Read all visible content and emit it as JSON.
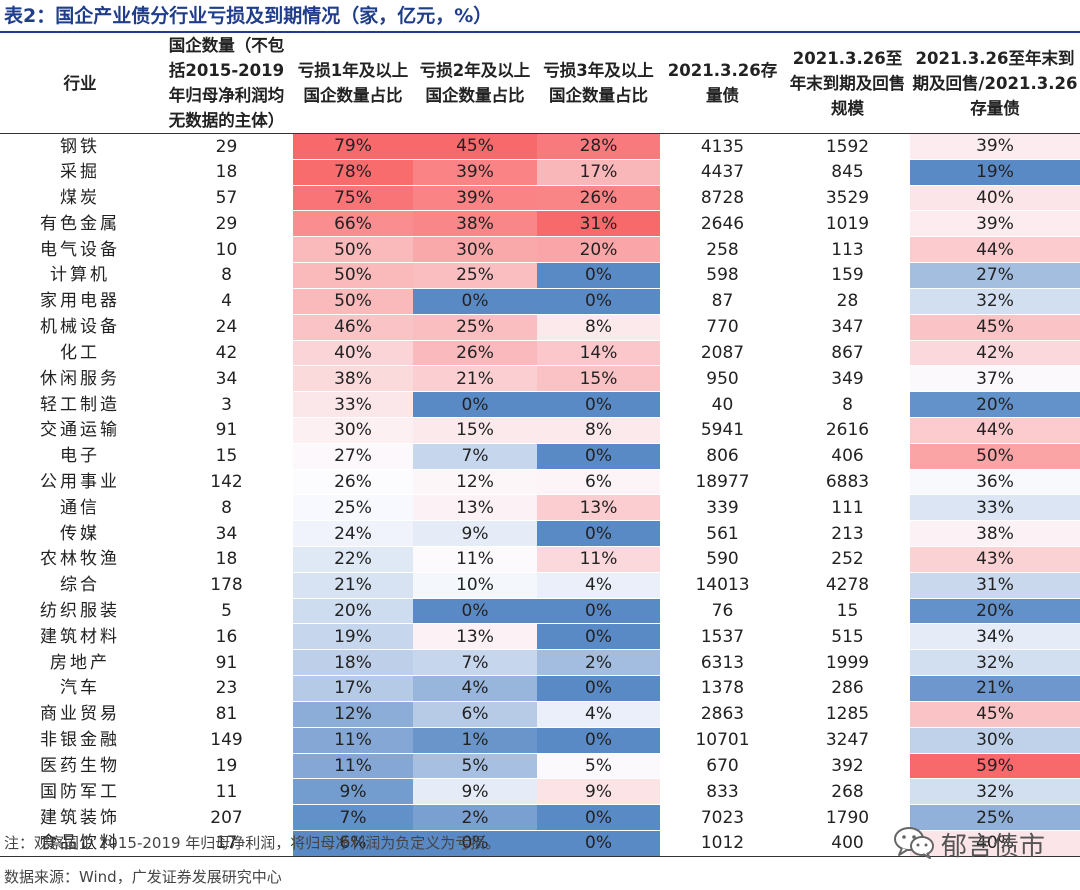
{
  "title": "表2：国企产业债分行业亏损及到期情况（家，亿元，%）",
  "table": {
    "headers": [
      "行业",
      "国企数量（不包括2015-2019年归母净利润均无数据的主体）",
      "亏损1年及以上国企数量占比",
      "亏损2年及以上国企数量占比",
      "亏损3年及以上国企数量占比",
      "2021.3.26存量债",
      "2021.3.26至年末到期及回售规模",
      "2021.3.26至年末到期及回售/2021.3.26存量债"
    ],
    "rows": [
      {
        "industry": "钢铁",
        "count": "29",
        "loss1": "79%",
        "loss2": "45%",
        "loss3": "28%",
        "stock": "4135",
        "due": "1592",
        "ratio": "39%"
      },
      {
        "industry": "采掘",
        "count": "18",
        "loss1": "78%",
        "loss2": "39%",
        "loss3": "17%",
        "stock": "4437",
        "due": "845",
        "ratio": "19%"
      },
      {
        "industry": "煤炭",
        "count": "57",
        "loss1": "75%",
        "loss2": "39%",
        "loss3": "26%",
        "stock": "8728",
        "due": "3529",
        "ratio": "40%"
      },
      {
        "industry": "有色金属",
        "count": "29",
        "loss1": "66%",
        "loss2": "38%",
        "loss3": "31%",
        "stock": "2646",
        "due": "1019",
        "ratio": "39%"
      },
      {
        "industry": "电气设备",
        "count": "10",
        "loss1": "50%",
        "loss2": "30%",
        "loss3": "20%",
        "stock": "258",
        "due": "113",
        "ratio": "44%"
      },
      {
        "industry": "计算机",
        "count": "8",
        "loss1": "50%",
        "loss2": "25%",
        "loss3": "0%",
        "stock": "598",
        "due": "159",
        "ratio": "27%"
      },
      {
        "industry": "家用电器",
        "count": "4",
        "loss1": "50%",
        "loss2": "0%",
        "loss3": "0%",
        "stock": "87",
        "due": "28",
        "ratio": "32%"
      },
      {
        "industry": "机械设备",
        "count": "24",
        "loss1": "46%",
        "loss2": "25%",
        "loss3": "8%",
        "stock": "770",
        "due": "347",
        "ratio": "45%"
      },
      {
        "industry": "化工",
        "count": "42",
        "loss1": "40%",
        "loss2": "26%",
        "loss3": "14%",
        "stock": "2087",
        "due": "867",
        "ratio": "42%"
      },
      {
        "industry": "休闲服务",
        "count": "34",
        "loss1": "38%",
        "loss2": "21%",
        "loss3": "15%",
        "stock": "950",
        "due": "349",
        "ratio": "37%"
      },
      {
        "industry": "轻工制造",
        "count": "3",
        "loss1": "33%",
        "loss2": "0%",
        "loss3": "0%",
        "stock": "40",
        "due": "8",
        "ratio": "20%"
      },
      {
        "industry": "交通运输",
        "count": "91",
        "loss1": "30%",
        "loss2": "15%",
        "loss3": "8%",
        "stock": "5941",
        "due": "2616",
        "ratio": "44%"
      },
      {
        "industry": "电子",
        "count": "15",
        "loss1": "27%",
        "loss2": "7%",
        "loss3": "0%",
        "stock": "806",
        "due": "406",
        "ratio": "50%"
      },
      {
        "industry": "公用事业",
        "count": "142",
        "loss1": "26%",
        "loss2": "12%",
        "loss3": "6%",
        "stock": "18977",
        "due": "6883",
        "ratio": "36%"
      },
      {
        "industry": "通信",
        "count": "8",
        "loss1": "25%",
        "loss2": "13%",
        "loss3": "13%",
        "stock": "339",
        "due": "111",
        "ratio": "33%"
      },
      {
        "industry": "传媒",
        "count": "34",
        "loss1": "24%",
        "loss2": "9%",
        "loss3": "0%",
        "stock": "561",
        "due": "213",
        "ratio": "38%"
      },
      {
        "industry": "农林牧渔",
        "count": "18",
        "loss1": "22%",
        "loss2": "11%",
        "loss3": "11%",
        "stock": "590",
        "due": "252",
        "ratio": "43%"
      },
      {
        "industry": "综合",
        "count": "178",
        "loss1": "21%",
        "loss2": "10%",
        "loss3": "4%",
        "stock": "14013",
        "due": "4278",
        "ratio": "31%"
      },
      {
        "industry": "纺织服装",
        "count": "5",
        "loss1": "20%",
        "loss2": "0%",
        "loss3": "0%",
        "stock": "76",
        "due": "15",
        "ratio": "20%"
      },
      {
        "industry": "建筑材料",
        "count": "16",
        "loss1": "19%",
        "loss2": "13%",
        "loss3": "0%",
        "stock": "1537",
        "due": "515",
        "ratio": "34%"
      },
      {
        "industry": "房地产",
        "count": "91",
        "loss1": "18%",
        "loss2": "7%",
        "loss3": "2%",
        "stock": "6313",
        "due": "1999",
        "ratio": "32%"
      },
      {
        "industry": "汽车",
        "count": "23",
        "loss1": "17%",
        "loss2": "4%",
        "loss3": "0%",
        "stock": "1378",
        "due": "286",
        "ratio": "21%"
      },
      {
        "industry": "商业贸易",
        "count": "81",
        "loss1": "12%",
        "loss2": "6%",
        "loss3": "4%",
        "stock": "2863",
        "due": "1285",
        "ratio": "45%"
      },
      {
        "industry": "非银金融",
        "count": "149",
        "loss1": "11%",
        "loss2": "1%",
        "loss3": "0%",
        "stock": "10701",
        "due": "3247",
        "ratio": "30%"
      },
      {
        "industry": "医药生物",
        "count": "19",
        "loss1": "11%",
        "loss2": "5%",
        "loss3": "5%",
        "stock": "670",
        "due": "392",
        "ratio": "59%"
      },
      {
        "industry": "国防军工",
        "count": "11",
        "loss1": "9%",
        "loss2": "9%",
        "loss3": "9%",
        "stock": "833",
        "due": "268",
        "ratio": "32%"
      },
      {
        "industry": "建筑装饰",
        "count": "207",
        "loss1": "7%",
        "loss2": "2%",
        "loss3": "0%",
        "stock": "7023",
        "due": "1790",
        "ratio": "25%"
      },
      {
        "industry": "食品饮料",
        "count": "17",
        "loss1": "6%",
        "loss2": "0%",
        "loss3": "0%",
        "stock": "1012",
        "due": "400",
        "ratio": "40%"
      }
    ]
  },
  "note": "注：观察国企 2015-2019 年归母净利润，将归母净利润为负定义为亏损。",
  "source": "数据来源：Wind，广发证券发展研究中心",
  "watermark": "郁言债市",
  "colors": {
    "title": "#1f3d8a",
    "heat_high": "#f8696b",
    "heat_mid": "#fcfcff",
    "heat_low": "#5a8ac6"
  }
}
